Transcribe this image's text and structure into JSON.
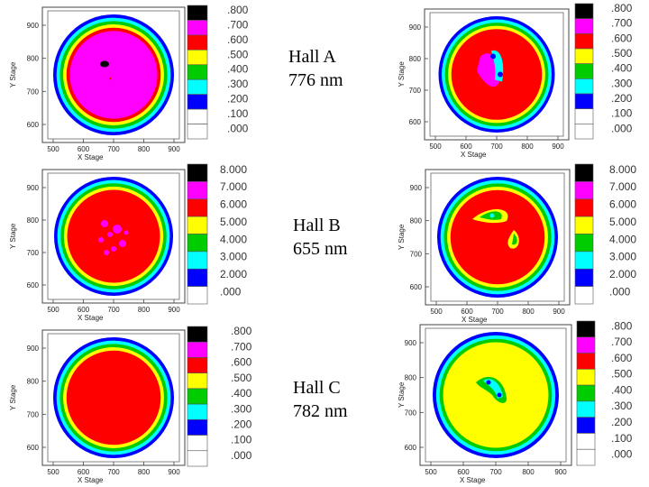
{
  "palette": [
    "#0000ff",
    "#00ffff",
    "#00cc00",
    "#ffff00",
    "#ff0000",
    "#ff00ff",
    "#000000"
  ],
  "row_labels": [
    {
      "name": "Hall A",
      "value": "776 nm"
    },
    {
      "name": "Hall B",
      "value": "655 nm"
    },
    {
      "name": "Hall C",
      "value": "782 nm"
    }
  ],
  "panels": [
    {
      "id": "a-left",
      "x_label": "X Stage",
      "y_label": "Y Stage",
      "x_ticks": [
        "500",
        "600",
        "700",
        "800",
        "900"
      ],
      "y_ticks": [
        "900",
        "800",
        "700",
        "600"
      ],
      "colorbar": [
        ".800",
        ".700",
        ".600",
        ".500",
        ".400",
        ".300",
        ".200",
        ".100",
        ".000"
      ],
      "center_level": 5,
      "hotspot": "dot"
    },
    {
      "id": "a-right",
      "x_label": "X Stage",
      "y_label": "Y Stage",
      "x_ticks": [
        "500",
        "600",
        "700",
        "800",
        "900"
      ],
      "y_ticks": [
        "900",
        "800",
        "700",
        "600"
      ],
      "colorbar": [
        ".800",
        ".700",
        ".600",
        ".500",
        ".400",
        ".300",
        ".200",
        ".100",
        ".000"
      ],
      "center_level": 4,
      "hotspot": "streak"
    },
    {
      "id": "b-left",
      "x_label": "X Stage",
      "y_label": "Y Stage",
      "x_ticks": [
        "500",
        "600",
        "700",
        "800",
        "900"
      ],
      "y_ticks": [
        "900",
        "800",
        "700",
        "600"
      ],
      "colorbar": [
        "8.000",
        "7.000",
        "6.000",
        "5.000",
        "4.000",
        "3.000",
        "2.000",
        ".000"
      ],
      "center_level": 4,
      "hotspot": "mottle"
    },
    {
      "id": "b-right",
      "x_label": "X Stage",
      "y_label": "Y Stage",
      "x_ticks": [
        "500",
        "600",
        "700",
        "800",
        "900"
      ],
      "y_ticks": [
        "900",
        "800",
        "700",
        "600"
      ],
      "colorbar": [
        "8.000",
        "7.000",
        "6.000",
        "5.000",
        "4.000",
        "3.000",
        "2.000",
        ".000"
      ],
      "center_level": 4,
      "hotspot": "arc"
    },
    {
      "id": "c-left",
      "x_label": "X Stage",
      "y_label": "Y Stage",
      "x_ticks": [
        "500",
        "600",
        "700",
        "800",
        "900"
      ],
      "y_ticks": [
        "900",
        "800",
        "700",
        "600"
      ],
      "colorbar": [
        ".800",
        ".700",
        ".600",
        ".500",
        ".400",
        ".300",
        ".200",
        ".100",
        ".000"
      ],
      "center_level": 4,
      "hotspot": "none"
    },
    {
      "id": "c-right",
      "x_label": "X Stage",
      "y_label": "Y Stage",
      "x_ticks": [
        "500",
        "600",
        "700",
        "800",
        "900"
      ],
      "y_ticks": [
        "900",
        "800",
        "700",
        "600"
      ],
      "colorbar": [
        ".800",
        ".700",
        ".600",
        ".500",
        ".400",
        ".300",
        ".200",
        ".100",
        ".000"
      ],
      "center_level": 3,
      "hotspot": "streak-blue"
    }
  ]
}
